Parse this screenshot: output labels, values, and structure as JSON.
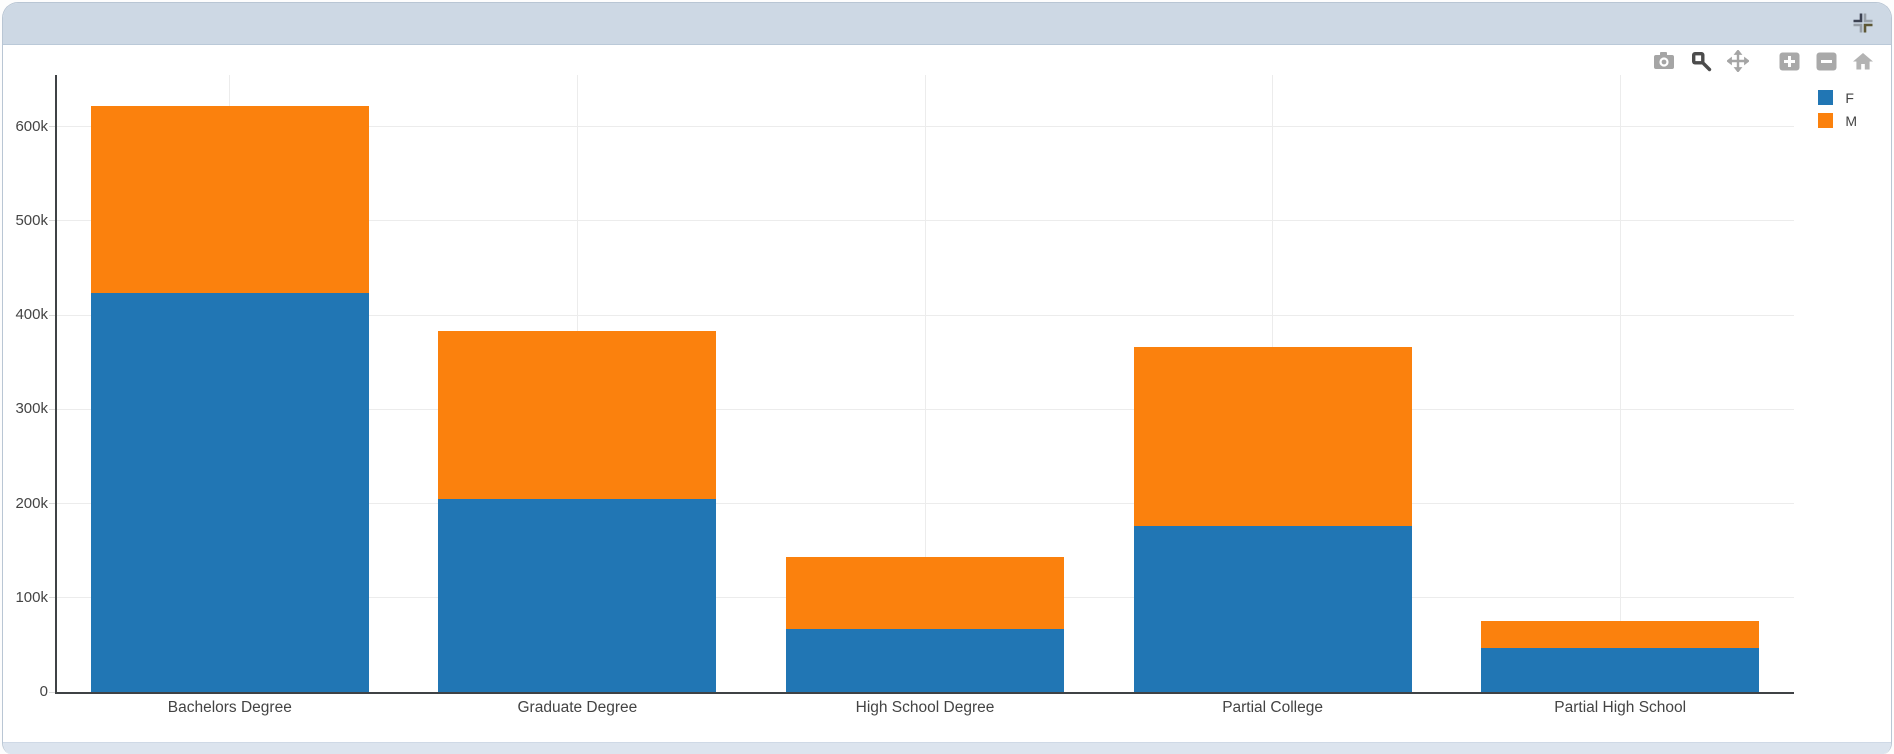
{
  "window": {
    "title": "",
    "collapse_button": "collapse-panel"
  },
  "modebar": {
    "buttons": [
      {
        "name": "camera-icon",
        "action": "download-plot",
        "active": false
      },
      {
        "name": "zoom-icon",
        "action": "zoom-mode",
        "active": true
      },
      {
        "name": "pan-icon",
        "action": "pan-mode",
        "active": false
      },
      {
        "name": "zoom-in-icon",
        "action": "zoom-in",
        "active": false
      },
      {
        "name": "zoom-out-icon",
        "action": "zoom-out",
        "active": false
      },
      {
        "name": "home-icon",
        "action": "reset-axes",
        "active": false
      }
    ]
  },
  "chart_data": {
    "type": "bar",
    "stacked": true,
    "title": "",
    "xlabel": "",
    "ylabel": "",
    "grid": true,
    "legend_position": "top-right",
    "categories": [
      "Bachelors Degree",
      "Graduate Degree",
      "High School Degree",
      "Partial College",
      "Partial High School"
    ],
    "series": [
      {
        "name": "F",
        "color": "#2176b4",
        "values": [
          423000,
          205000,
          67000,
          176000,
          47000
        ]
      },
      {
        "name": "M",
        "color": "#fb810d",
        "values": [
          199000,
          178000,
          76000,
          190000,
          28000
        ]
      }
    ],
    "ylim": [
      0,
      654000
    ],
    "yticks": {
      "values": [
        0,
        100000,
        200000,
        300000,
        400000,
        500000,
        600000
      ],
      "labels": [
        "0",
        "100k",
        "200k",
        "300k",
        "400k",
        "500k",
        "600k"
      ]
    }
  },
  "colors": {
    "header_bg": "#cdd8e4",
    "footer_bg": "#dce4ee",
    "axis": "#3f4245",
    "gridline": "#ececec",
    "tick_text": "#444444"
  }
}
